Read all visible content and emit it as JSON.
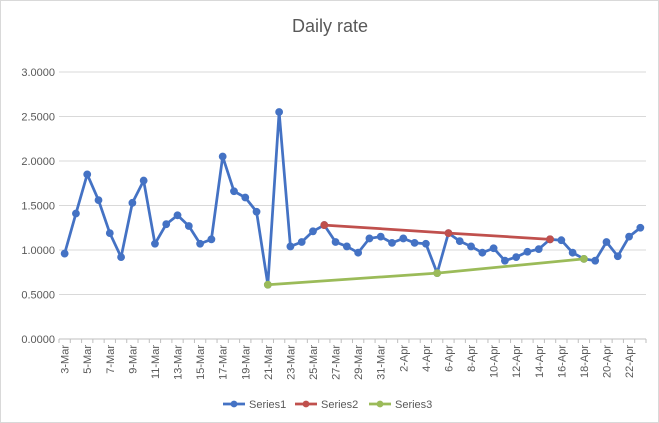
{
  "chart_data": {
    "type": "line",
    "title": "Daily rate",
    "xlabel": "",
    "ylabel": "",
    "ylim": [
      0,
      3
    ],
    "yticks": [
      0,
      0.5,
      1,
      1.5,
      2,
      2.5,
      3
    ],
    "ytick_labels": [
      "0.0000",
      "0.5000",
      "1.0000",
      "1.5000",
      "2.0000",
      "2.5000",
      "3.0000"
    ],
    "grid": true,
    "legend_position": "bottom",
    "x": [
      "3-Mar",
      "4-Mar",
      "5-Mar",
      "6-Mar",
      "7-Mar",
      "8-Mar",
      "9-Mar",
      "10-Mar",
      "11-Mar",
      "12-Mar",
      "13-Mar",
      "14-Mar",
      "15-Mar",
      "16-Mar",
      "17-Mar",
      "18-Mar",
      "19-Mar",
      "20-Mar",
      "21-Mar",
      "22-Mar",
      "23-Mar",
      "24-Mar",
      "25-Mar",
      "26-Mar",
      "27-Mar",
      "28-Mar",
      "29-Mar",
      "30-Mar",
      "31-Mar",
      "1-Apr",
      "2-Apr",
      "3-Apr",
      "4-Apr",
      "5-Apr",
      "6-Apr",
      "7-Apr",
      "8-Apr",
      "9-Apr",
      "10-Apr",
      "11-Apr",
      "12-Apr",
      "13-Apr",
      "14-Apr",
      "15-Apr",
      "16-Apr",
      "17-Apr",
      "18-Apr",
      "19-Apr",
      "20-Apr",
      "21-Apr",
      "22-Apr",
      "23-Apr"
    ],
    "x_tick_labels": [
      "3-Mar",
      "5-Mar",
      "7-Mar",
      "9-Mar",
      "11-Mar",
      "13-Mar",
      "15-Mar",
      "17-Mar",
      "19-Mar",
      "21-Mar",
      "23-Mar",
      "25-Mar",
      "27-Mar",
      "29-Mar",
      "31-Mar",
      "2-Apr",
      "4-Apr",
      "6-Apr",
      "8-Apr",
      "10-Apr",
      "12-Apr",
      "14-Apr",
      "16-Apr",
      "18-Apr",
      "20-Apr",
      "22-Apr"
    ],
    "series": [
      {
        "name": "Series1",
        "color": "#4472c4",
        "values": [
          0.96,
          1.41,
          1.85,
          1.56,
          1.19,
          0.92,
          1.53,
          1.78,
          1.07,
          1.29,
          1.39,
          1.27,
          1.07,
          1.12,
          2.05,
          1.66,
          1.59,
          1.43,
          0.61,
          2.55,
          1.04,
          1.09,
          1.21,
          1.28,
          1.09,
          1.04,
          0.97,
          1.13,
          1.15,
          1.08,
          1.13,
          1.08,
          1.07,
          0.74,
          1.19,
          1.1,
          1.04,
          0.97,
          1.02,
          0.88,
          0.92,
          0.98,
          1.01,
          1.12,
          1.11,
          0.97,
          0.9,
          0.88,
          1.09,
          0.93,
          1.15,
          1.25
        ]
      },
      {
        "name": "Series2",
        "color": "#c0504d",
        "values": [
          null,
          null,
          null,
          null,
          null,
          null,
          null,
          null,
          null,
          null,
          null,
          null,
          null,
          null,
          null,
          null,
          null,
          null,
          null,
          null,
          null,
          null,
          null,
          1.28,
          null,
          null,
          null,
          null,
          null,
          null,
          null,
          null,
          null,
          null,
          1.19,
          null,
          null,
          null,
          null,
          null,
          null,
          null,
          null,
          1.12,
          null,
          null,
          null,
          null,
          null,
          null,
          null,
          null
        ]
      },
      {
        "name": "Series3",
        "color": "#9bbb59",
        "values": [
          null,
          null,
          null,
          null,
          null,
          null,
          null,
          null,
          null,
          null,
          null,
          null,
          null,
          null,
          null,
          null,
          null,
          null,
          0.61,
          null,
          null,
          null,
          null,
          null,
          null,
          null,
          null,
          null,
          null,
          null,
          null,
          null,
          null,
          0.74,
          null,
          null,
          null,
          null,
          null,
          null,
          null,
          null,
          null,
          null,
          null,
          null,
          0.9,
          null,
          null,
          null,
          null,
          null
        ]
      }
    ]
  }
}
